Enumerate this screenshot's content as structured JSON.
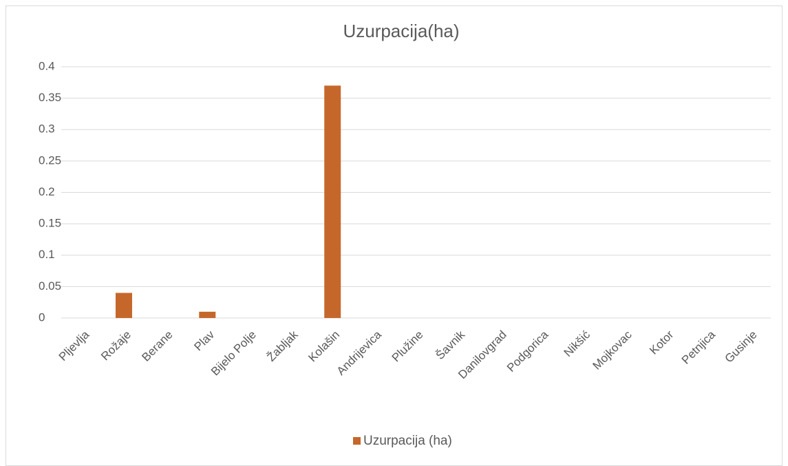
{
  "chart_data": {
    "type": "bar",
    "title": "Uzurpacija(ha)",
    "categories": [
      "Pljevlja",
      "Rožaje",
      "Berane",
      "Plav",
      "Bijelo Polje",
      "Žabljak",
      "Kolašin",
      "Andrijevica",
      "Plužine",
      "Šavnik",
      "Danilovgrad",
      "Podgorica",
      "Nikšić",
      "Mojkovac",
      "Kotor",
      "Petnjica",
      "Gusinje"
    ],
    "series": [
      {
        "name": "Uzurpacija (ha)",
        "color": "#c5672b",
        "values": [
          0,
          0.04,
          0,
          0.01,
          0,
          0,
          0.37,
          0,
          0,
          0,
          0,
          0,
          0,
          0,
          0,
          0,
          0
        ]
      }
    ],
    "ylim": [
      0,
      0.4
    ],
    "yticks": [
      0,
      0.05,
      0.1,
      0.15,
      0.2,
      0.25,
      0.3,
      0.35,
      0.4
    ],
    "grid": true,
    "legend": "bottom"
  }
}
